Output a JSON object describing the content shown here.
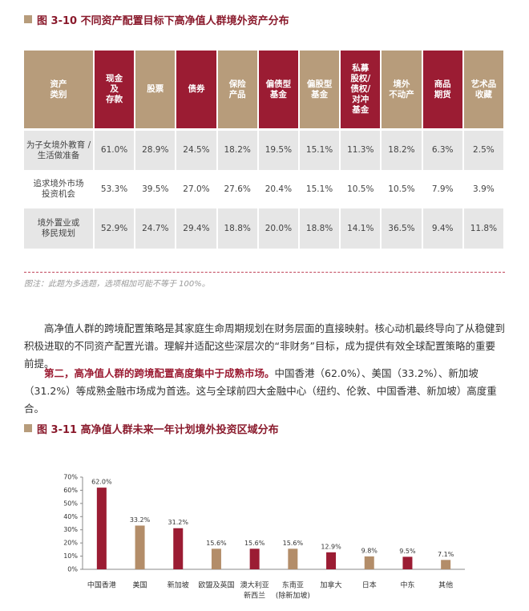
{
  "figure1": {
    "title": "图 3-10  不同资产配置目标下高净值人群境外资产分布",
    "header_colors": [
      "#b79c7b",
      "#9b1c33",
      "#b79c7b",
      "#9b1c33",
      "#b79c7b",
      "#9b1c33",
      "#b79c7b",
      "#9b1c33",
      "#b79c7b",
      "#9b1c33",
      "#b79c7b"
    ],
    "table": {
      "header": [
        [
          "资产",
          "类别"
        ],
        [
          "现金",
          "及",
          "存款"
        ],
        [
          "股票"
        ],
        [
          "债券"
        ],
        [
          "保险",
          "产品"
        ],
        [
          "偏债型",
          "基金"
        ],
        [
          "偏股型",
          "基金"
        ],
        [
          "私募",
          "股权/",
          "债权/",
          "对冲",
          "基金"
        ],
        [
          "境外",
          "不动产"
        ],
        [
          "商品",
          "期货"
        ],
        [
          "艺术品",
          "收藏"
        ]
      ],
      "rows": [
        [
          [
            "为子女境外教育 /",
            "生活做准备"
          ],
          "61.0%",
          "28.9%",
          "24.5%",
          "18.2%",
          "19.5%",
          "15.1%",
          "11.3%",
          "18.2%",
          "6.3%",
          "2.5%"
        ],
        [
          [
            "追求境外市场",
            "投资机会"
          ],
          "53.3%",
          "39.5%",
          "27.0%",
          "27.6%",
          "20.4%",
          "15.1%",
          "10.5%",
          "10.5%",
          "7.9%",
          "3.9%"
        ],
        [
          [
            "境外置业或",
            "移民规划"
          ],
          "52.9%",
          "24.7%",
          "29.4%",
          "18.8%",
          "20.0%",
          "18.8%",
          "14.1%",
          "36.5%",
          "9.4%",
          "11.8%"
        ]
      ]
    },
    "note": "图注：此题为多选题，选项相加可能不等于 100%。"
  },
  "paragraphs": [
    {
      "text": "高净值人群的跨境配置策略是其家庭生命周期规划在财务层面的直接映射。核心动机最终导向了从稳健到积极进取的不同资产配置光谱。理解并适配这些深层次的“非财务”目标，成为提供有效全球配置策略的重要前提。"
    },
    {
      "lead": "第二，高净值人群的跨境配置高度集中于成熟市场。",
      "text": "中国香港（62.0%）、美国（33.2%）、新加坡（31.2%）等成熟金融市场成为首选。这与全球前四大金融中心（纽约、伦敦、中国香港、新加坡）高度重合。"
    }
  ],
  "chart_data": {
    "type": "bar",
    "title": "图 3-11  高净值人群未来一年计划境外投资区域分布",
    "categories": [
      [
        "中国香港"
      ],
      [
        "美国"
      ],
      [
        "新加坡"
      ],
      [
        "欧盟及英国"
      ],
      [
        "澳大利亚",
        "新西兰"
      ],
      [
        "东南亚",
        "(除新加坡)"
      ],
      [
        "加拿大"
      ],
      [
        "日本"
      ],
      [
        "中东"
      ],
      [
        "其他"
      ]
    ],
    "values": [
      62.0,
      33.2,
      31.2,
      15.6,
      15.6,
      15.6,
      12.9,
      9.8,
      9.5,
      7.1
    ],
    "value_labels": [
      "62.0%",
      "33.2%",
      "31.2%",
      "15.6%",
      "15.6%",
      "15.6%",
      "12.9%",
      "9.8%",
      "9.5%",
      "7.1%"
    ],
    "colors": [
      "#9b1c33",
      "#b38d69",
      "#9b1c33",
      "#b38d69",
      "#9b1c33",
      "#b38d69",
      "#9b1c33",
      "#b38d69",
      "#9b1c33",
      "#b38d69"
    ],
    "ylim": [
      0,
      70
    ],
    "yticks": [
      {
        "value": 0,
        "label": "0%"
      },
      {
        "value": 10,
        "label": "10%"
      },
      {
        "value": 20,
        "label": "20%"
      },
      {
        "value": 30,
        "label": "30%"
      },
      {
        "value": 40,
        "label": "40%"
      },
      {
        "value": 50,
        "label": "50%"
      },
      {
        "value": 60,
        "label": "60%"
      },
      {
        "value": 70,
        "label": "70%"
      }
    ]
  }
}
